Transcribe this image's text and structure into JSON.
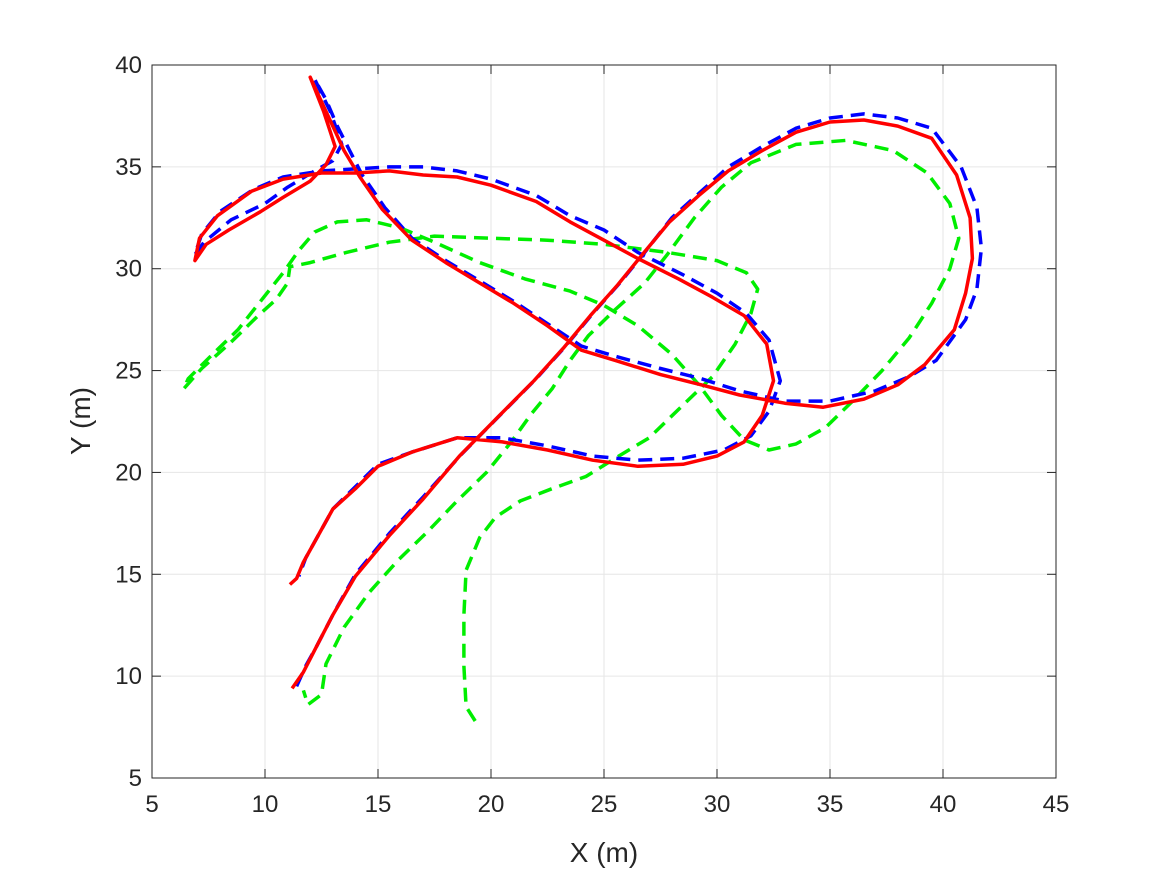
{
  "chart_data": {
    "type": "line",
    "title": "",
    "xlabel": "X (m)",
    "ylabel": "Y (m)",
    "xlim": [
      5,
      45
    ],
    "ylim": [
      5,
      40
    ],
    "x_ticks": [
      5,
      10,
      15,
      20,
      25,
      30,
      35,
      40,
      45
    ],
    "y_ticks": [
      5,
      10,
      15,
      20,
      25,
      30,
      35,
      40
    ],
    "grid": true,
    "legend": "none",
    "series": [
      {
        "color": "#00ee00",
        "style": "dashed",
        "points": [
          [
            19.3,
            7.8
          ],
          [
            18.9,
            8.5
          ],
          [
            18.8,
            10.5
          ],
          [
            18.8,
            13.0
          ],
          [
            18.9,
            15.2
          ],
          [
            19.5,
            16.8
          ],
          [
            20.2,
            17.8
          ],
          [
            21.3,
            18.6
          ],
          [
            22.7,
            19.2
          ],
          [
            24.2,
            19.8
          ],
          [
            25.5,
            20.7
          ],
          [
            27.0,
            21.7
          ],
          [
            28.4,
            23.2
          ],
          [
            29.8,
            24.7
          ],
          [
            30.8,
            26.3
          ],
          [
            31.5,
            27.8
          ],
          [
            31.8,
            29.0
          ],
          [
            31.3,
            29.8
          ],
          [
            30.0,
            30.4
          ],
          [
            27.8,
            30.8
          ],
          [
            25.0,
            31.2
          ],
          [
            22.5,
            31.4
          ],
          [
            20.0,
            31.5
          ],
          [
            17.5,
            31.6
          ],
          [
            15.5,
            31.3
          ],
          [
            13.6,
            30.8
          ],
          [
            12.0,
            30.3
          ],
          [
            11.1,
            30.1
          ],
          [
            11.0,
            29.3
          ],
          [
            10.5,
            28.5
          ],
          [
            9.7,
            27.7
          ],
          [
            8.5,
            26.4
          ],
          [
            7.2,
            25.1
          ],
          [
            6.4,
            24.1
          ],
          [
            6.6,
            24.6
          ],
          [
            7.5,
            25.6
          ],
          [
            8.8,
            27.0
          ],
          [
            9.8,
            28.4
          ],
          [
            10.8,
            29.8
          ],
          [
            11.5,
            30.9
          ],
          [
            12.2,
            31.8
          ],
          [
            13.2,
            32.3
          ],
          [
            14.5,
            32.4
          ],
          [
            16.0,
            32.0
          ],
          [
            17.5,
            31.3
          ],
          [
            19.5,
            30.3
          ],
          [
            21.5,
            29.5
          ],
          [
            23.5,
            28.9
          ],
          [
            25.0,
            28.2
          ],
          [
            26.5,
            27.2
          ],
          [
            28.0,
            25.8
          ],
          [
            29.2,
            24.3
          ],
          [
            30.2,
            22.8
          ],
          [
            31.2,
            21.6
          ],
          [
            32.3,
            21.1
          ],
          [
            33.5,
            21.4
          ],
          [
            34.8,
            22.2
          ],
          [
            36.0,
            23.5
          ],
          [
            37.3,
            25.0
          ],
          [
            38.5,
            26.6
          ],
          [
            39.5,
            28.3
          ],
          [
            40.3,
            30.0
          ],
          [
            40.7,
            31.5
          ],
          [
            40.3,
            33.2
          ],
          [
            39.3,
            34.7
          ],
          [
            37.8,
            35.8
          ],
          [
            35.7,
            36.3
          ],
          [
            33.5,
            36.1
          ],
          [
            31.5,
            35.2
          ],
          [
            30.2,
            34.0
          ],
          [
            29.0,
            32.5
          ],
          [
            27.8,
            30.7
          ],
          [
            26.8,
            29.3
          ],
          [
            25.5,
            28.0
          ],
          [
            24.3,
            26.7
          ],
          [
            23.5,
            25.5
          ],
          [
            22.7,
            24.1
          ],
          [
            21.8,
            22.9
          ],
          [
            20.9,
            21.5
          ],
          [
            19.8,
            20.0
          ],
          [
            18.5,
            18.6
          ],
          [
            17.2,
            17.1
          ],
          [
            15.9,
            15.7
          ],
          [
            14.6,
            14.1
          ],
          [
            13.5,
            12.4
          ],
          [
            12.7,
            10.6
          ],
          [
            12.5,
            9.1
          ],
          [
            11.9,
            8.6
          ],
          [
            11.7,
            9.3
          ]
        ]
      },
      {
        "color": "#0000ff",
        "style": "dashed",
        "points": [
          [
            11.4,
            9.5
          ],
          [
            11.8,
            10.5
          ],
          [
            12.3,
            11.5
          ],
          [
            13.0,
            13.0
          ],
          [
            14.0,
            15.0
          ],
          [
            15.5,
            17.0
          ],
          [
            17.0,
            18.8
          ],
          [
            18.7,
            20.9
          ],
          [
            20.3,
            22.7
          ],
          [
            22.0,
            24.6
          ],
          [
            23.3,
            26.2
          ],
          [
            24.5,
            27.8
          ],
          [
            25.7,
            29.3
          ],
          [
            26.8,
            30.8
          ],
          [
            28.0,
            32.5
          ],
          [
            29.3,
            33.8
          ],
          [
            30.5,
            35.0
          ],
          [
            32.0,
            36.0
          ],
          [
            33.5,
            36.9
          ],
          [
            35.0,
            37.4
          ],
          [
            36.5,
            37.6
          ],
          [
            38.0,
            37.4
          ],
          [
            39.5,
            36.9
          ],
          [
            40.8,
            35.0
          ],
          [
            41.5,
            33.0
          ],
          [
            41.7,
            31.0
          ],
          [
            41.5,
            29.0
          ],
          [
            41.0,
            27.5
          ],
          [
            39.7,
            25.5
          ],
          [
            38.5,
            24.7
          ],
          [
            37.0,
            24.0
          ],
          [
            35.0,
            23.5
          ],
          [
            33.0,
            23.5
          ],
          [
            31.0,
            24.0
          ],
          [
            29.3,
            24.6
          ],
          [
            27.5,
            25.1
          ],
          [
            25.5,
            25.7
          ],
          [
            24.0,
            26.2
          ],
          [
            22.5,
            27.3
          ],
          [
            21.0,
            28.4
          ],
          [
            19.5,
            29.4
          ],
          [
            18.0,
            30.4
          ],
          [
            16.5,
            31.5
          ],
          [
            15.3,
            33.0
          ],
          [
            14.3,
            34.6
          ],
          [
            13.7,
            35.9
          ],
          [
            13.2,
            37.0
          ],
          [
            12.7,
            38.3
          ],
          [
            12.2,
            39.3
          ],
          [
            12.9,
            37.7
          ],
          [
            13.4,
            36.1
          ],
          [
            13.0,
            35.3
          ],
          [
            12.2,
            34.8
          ],
          [
            11.0,
            34.0
          ],
          [
            10.0,
            33.2
          ],
          [
            8.5,
            32.4
          ],
          [
            7.3,
            31.3
          ],
          [
            6.9,
            30.7
          ],
          [
            7.2,
            31.7
          ],
          [
            8.0,
            32.8
          ],
          [
            9.5,
            33.9
          ],
          [
            10.8,
            34.5
          ],
          [
            12.5,
            34.8
          ],
          [
            14.0,
            34.9
          ],
          [
            15.5,
            35.0
          ],
          [
            17.0,
            35.0
          ],
          [
            18.5,
            34.8
          ],
          [
            20.0,
            34.4
          ],
          [
            22.0,
            33.6
          ],
          [
            23.5,
            32.6
          ],
          [
            25.0,
            31.9
          ],
          [
            26.5,
            30.8
          ],
          [
            28.5,
            29.7
          ],
          [
            30.0,
            28.8
          ],
          [
            31.3,
            27.8
          ],
          [
            32.3,
            26.5
          ],
          [
            32.8,
            24.5
          ],
          [
            32.3,
            23.0
          ],
          [
            31.5,
            21.8
          ],
          [
            30.3,
            21.1
          ],
          [
            28.5,
            20.7
          ],
          [
            26.5,
            20.6
          ],
          [
            24.5,
            20.8
          ],
          [
            22.5,
            21.3
          ],
          [
            20.5,
            21.7
          ],
          [
            18.5,
            21.7
          ],
          [
            16.5,
            21.0
          ],
          [
            15.0,
            20.4
          ],
          [
            14.0,
            19.3
          ],
          [
            13.0,
            18.2
          ],
          [
            12.3,
            16.8
          ],
          [
            11.8,
            15.8
          ],
          [
            11.5,
            14.9
          ]
        ]
      },
      {
        "color": "#ff0000",
        "style": "solid",
        "points": [
          [
            11.2,
            9.4
          ],
          [
            11.7,
            10.2
          ],
          [
            12.3,
            11.5
          ],
          [
            13.0,
            13.0
          ],
          [
            14.0,
            14.9
          ],
          [
            15.5,
            16.9
          ],
          [
            17.0,
            18.7
          ],
          [
            18.6,
            20.8
          ],
          [
            20.2,
            22.6
          ],
          [
            21.9,
            24.5
          ],
          [
            23.2,
            26.1
          ],
          [
            24.4,
            27.7
          ],
          [
            25.6,
            29.2
          ],
          [
            26.7,
            30.7
          ],
          [
            27.9,
            32.3
          ],
          [
            29.2,
            33.6
          ],
          [
            30.5,
            34.8
          ],
          [
            32.0,
            35.8
          ],
          [
            33.5,
            36.7
          ],
          [
            35.0,
            37.2
          ],
          [
            36.5,
            37.3
          ],
          [
            38.0,
            37.0
          ],
          [
            39.5,
            36.4
          ],
          [
            40.6,
            34.6
          ],
          [
            41.2,
            32.5
          ],
          [
            41.3,
            30.5
          ],
          [
            41.0,
            28.8
          ],
          [
            40.5,
            27.0
          ],
          [
            39.2,
            25.3
          ],
          [
            38.0,
            24.3
          ],
          [
            36.5,
            23.6
          ],
          [
            34.7,
            23.2
          ],
          [
            33.0,
            23.4
          ],
          [
            31.0,
            23.8
          ],
          [
            29.3,
            24.3
          ],
          [
            27.5,
            24.8
          ],
          [
            25.5,
            25.5
          ],
          [
            24.0,
            26.0
          ],
          [
            22.5,
            27.2
          ],
          [
            21.0,
            28.3
          ],
          [
            19.5,
            29.3
          ],
          [
            18.0,
            30.3
          ],
          [
            16.5,
            31.4
          ],
          [
            15.2,
            32.9
          ],
          [
            14.2,
            34.5
          ],
          [
            13.5,
            35.8
          ],
          [
            13.0,
            37.0
          ],
          [
            12.5,
            38.2
          ],
          [
            12.0,
            39.4
          ],
          [
            12.6,
            37.7
          ],
          [
            13.1,
            36.0
          ],
          [
            12.7,
            35.1
          ],
          [
            12.0,
            34.3
          ],
          [
            10.8,
            33.5
          ],
          [
            9.8,
            32.8
          ],
          [
            8.4,
            31.9
          ],
          [
            7.4,
            31.2
          ],
          [
            6.9,
            30.4
          ],
          [
            7.1,
            31.5
          ],
          [
            7.9,
            32.6
          ],
          [
            9.4,
            33.8
          ],
          [
            10.8,
            34.4
          ],
          [
            12.5,
            34.7
          ],
          [
            14.0,
            34.7
          ],
          [
            15.5,
            34.8
          ],
          [
            17.0,
            34.6
          ],
          [
            18.5,
            34.5
          ],
          [
            20.0,
            34.1
          ],
          [
            22.0,
            33.3
          ],
          [
            23.5,
            32.3
          ],
          [
            25.0,
            31.4
          ],
          [
            26.5,
            30.5
          ],
          [
            28.3,
            29.5
          ],
          [
            29.8,
            28.6
          ],
          [
            31.2,
            27.7
          ],
          [
            32.2,
            26.3
          ],
          [
            32.5,
            24.5
          ],
          [
            32.0,
            22.8
          ],
          [
            31.2,
            21.5
          ],
          [
            30.0,
            20.8
          ],
          [
            28.5,
            20.4
          ],
          [
            26.5,
            20.3
          ],
          [
            24.5,
            20.6
          ],
          [
            22.5,
            21.1
          ],
          [
            20.5,
            21.5
          ],
          [
            18.5,
            21.7
          ],
          [
            16.5,
            21.0
          ],
          [
            15.0,
            20.3
          ],
          [
            14.0,
            19.2
          ],
          [
            13.0,
            18.2
          ],
          [
            12.3,
            16.8
          ],
          [
            11.7,
            15.6
          ],
          [
            11.4,
            14.8
          ],
          [
            11.1,
            14.5
          ]
        ]
      }
    ]
  }
}
